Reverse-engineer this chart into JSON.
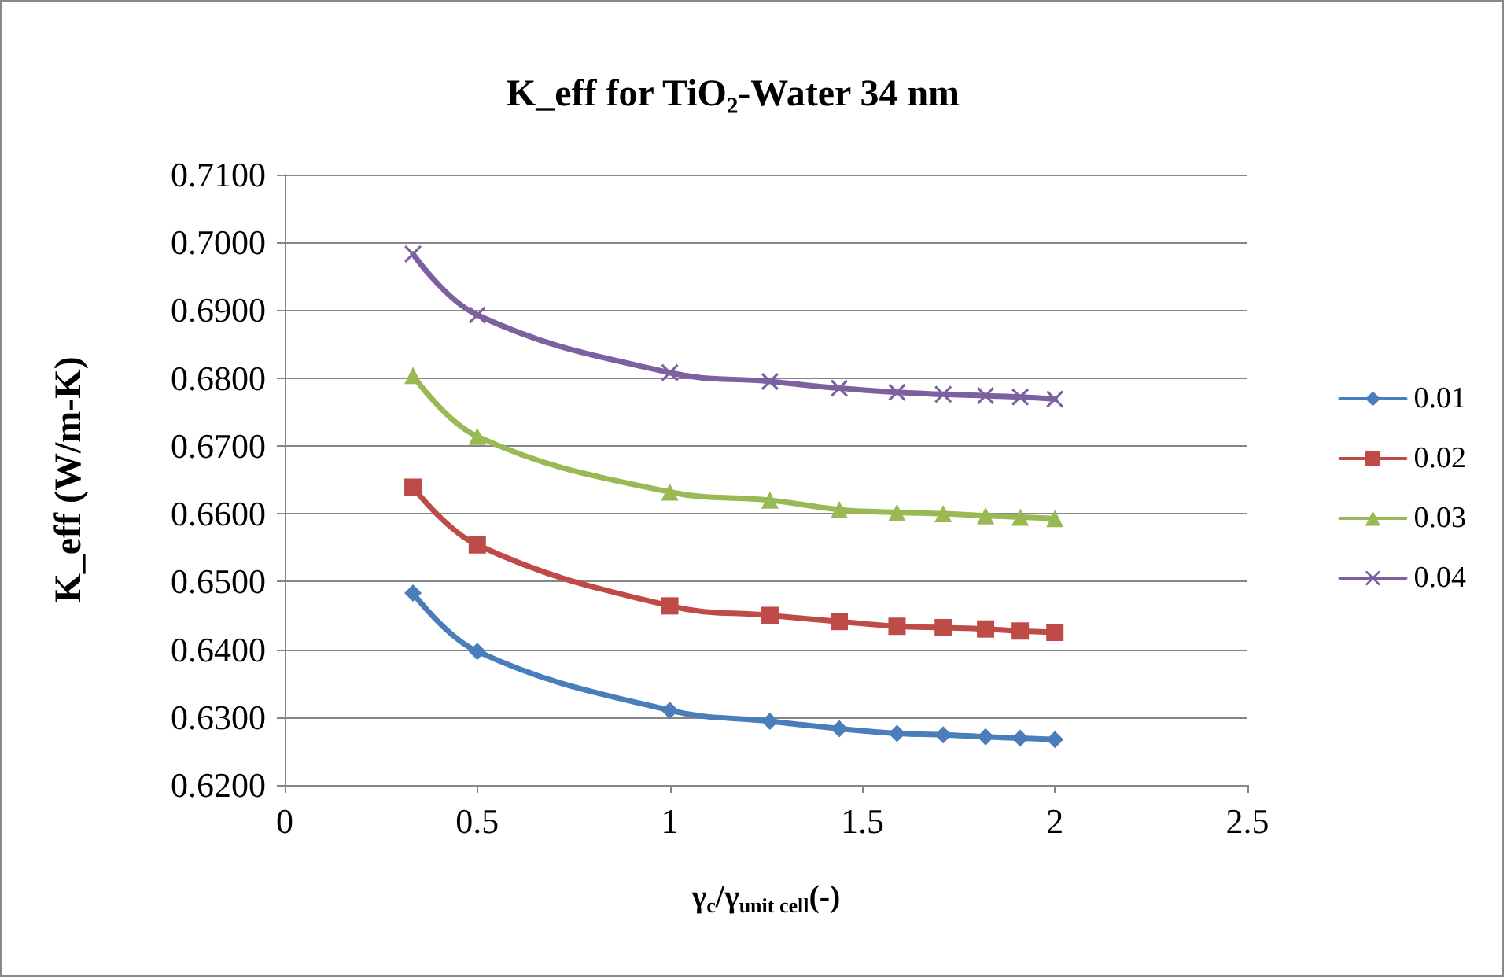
{
  "chart_data": {
    "type": "line",
    "title": "K_eff for TiO₂-Water 34 nm",
    "xlabel": "γ$_{c}$/γ$_{unit cell}$(-)",
    "ylabel": "K_eff (W/m-K)",
    "x": [
      0.333,
      0.5,
      1,
      1.26,
      1.44,
      1.59,
      1.71,
      1.82,
      1.91,
      2
    ],
    "series": [
      {
        "name": "0.01",
        "color": "#4a7ebb",
        "marker": "diamond",
        "values": [
          0.6483,
          0.6397,
          0.631,
          0.6294,
          0.6283,
          0.6276,
          0.6274,
          0.6271,
          0.6269,
          0.6267
        ]
      },
      {
        "name": "0.02",
        "color": "#be4b48",
        "marker": "square",
        "values": [
          0.6639,
          0.6554,
          0.6464,
          0.645,
          0.6441,
          0.6434,
          0.6432,
          0.643,
          0.6427,
          0.6425
        ]
      },
      {
        "name": "0.03",
        "color": "#98b954",
        "marker": "triangle",
        "values": [
          0.6804,
          0.6714,
          0.6632,
          0.662,
          0.6606,
          0.6602,
          0.66,
          0.6597,
          0.6595,
          0.6593
        ]
      },
      {
        "name": "0.04",
        "color": "#7d60a0",
        "marker": "cross",
        "values": [
          0.6983,
          0.6893,
          0.6808,
          0.6795,
          0.6785,
          0.6779,
          0.6776,
          0.6774,
          0.6772,
          0.6769
        ]
      }
    ],
    "xlim": [
      0,
      2.5
    ],
    "xticks": [
      0,
      0.5,
      1,
      1.5,
      2,
      2.5
    ],
    "ylim": [
      0.62,
      0.71
    ],
    "yticks": [
      {
        "value": 0.62,
        "label": "0.6200"
      },
      {
        "value": 0.63,
        "label": "0.6300"
      },
      {
        "value": 0.64,
        "label": "0.6400"
      },
      {
        "value": 0.65,
        "label": "0.6500"
      },
      {
        "value": 0.66,
        "label": "0.6600"
      },
      {
        "value": 0.67,
        "label": "0.6700"
      },
      {
        "value": 0.68,
        "label": "0.6800"
      },
      {
        "value": 0.69,
        "label": "0.6900"
      },
      {
        "value": 0.7,
        "label": "0.7000"
      },
      {
        "value": 0.71,
        "label": "0.7100"
      }
    ],
    "grid": "y",
    "legend": "right",
    "line_style": "solid"
  }
}
